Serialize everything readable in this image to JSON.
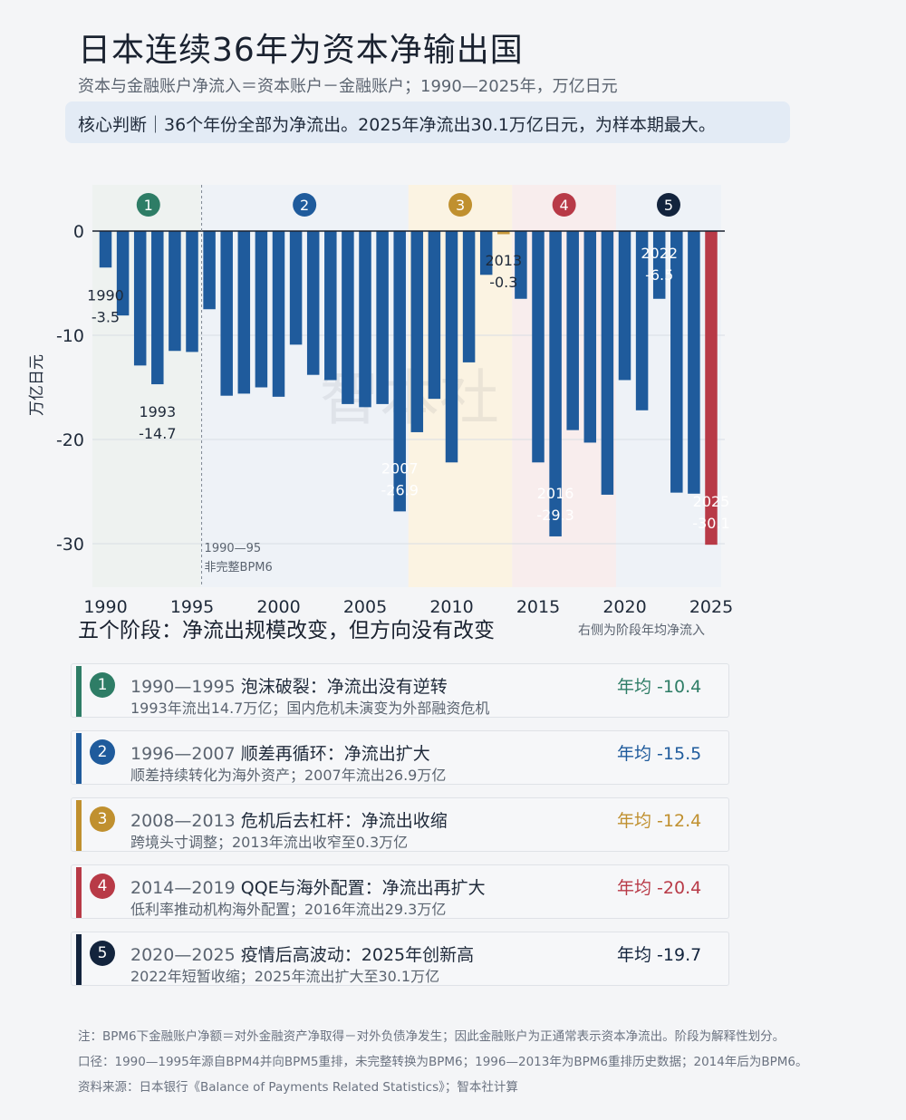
{
  "header": {
    "title": "日本连续36年为资本净输出国",
    "subtitle": "资本与金融账户净流入＝资本账户－金融账户；1990—2025年，万亿日元",
    "callout": "核心判断｜36个年份全部为净流出。2025年净流出30.1万亿日元，为样本期最大。"
  },
  "chart_data": {
    "type": "bar",
    "ylabel": "万亿日元",
    "ylim": [
      -34,
      2
    ],
    "yticks": [
      0,
      -10,
      -20,
      -30
    ],
    "xticks": [
      1990,
      1995,
      2000,
      2005,
      2010,
      2015,
      2020,
      2025
    ],
    "watermark": "智本社",
    "x": [
      1990,
      1991,
      1992,
      1993,
      1994,
      1995,
      1996,
      1997,
      1998,
      1999,
      2000,
      2001,
      2002,
      2003,
      2004,
      2005,
      2006,
      2007,
      2008,
      2009,
      2010,
      2011,
      2012,
      2013,
      2014,
      2015,
      2016,
      2017,
      2018,
      2019,
      2020,
      2021,
      2022,
      2023,
      2024,
      2025
    ],
    "values": [
      -3.5,
      -8.1,
      -12.9,
      -14.7,
      -11.5,
      -11.6,
      -7.5,
      -15.8,
      -15.6,
      -15.0,
      -15.9,
      -10.9,
      -13.8,
      -14.3,
      -16.6,
      -16.9,
      -16.6,
      -26.9,
      -19.3,
      -16.1,
      -22.2,
      -12.6,
      -4.2,
      -0.3,
      -6.5,
      -22.2,
      -29.3,
      -19.1,
      -20.3,
      -25.3,
      -14.3,
      -17.2,
      -6.5,
      -25.1,
      -25.2,
      -30.1
    ],
    "bar_color": "#1f5b9c",
    "highlight": {
      "year": 2025,
      "color": "#b83a47"
    },
    "small_value_color": "#c99a3c",
    "annotations": [
      {
        "year": 1990,
        "label": "1990",
        "value": "-3.5"
      },
      {
        "year": 1993,
        "label": "1993",
        "value": "-14.7"
      },
      {
        "year": 2007,
        "label": "2007",
        "value": "-26.9"
      },
      {
        "year": 2013,
        "label": "2013",
        "value": "-0.3"
      },
      {
        "year": 2016,
        "label": "2016",
        "value": "-29.3"
      },
      {
        "year": 2022,
        "label": "2022",
        "value": "-6.5"
      },
      {
        "year": 2025,
        "label": "2025",
        "value": "-30.1"
      }
    ],
    "divider": {
      "year": 1995.5,
      "lines": [
        "1990—95",
        "非完整BPM6"
      ]
    },
    "phases": [
      {
        "num": "1",
        "from": 1990,
        "to": 1995,
        "color": "#2e7d66",
        "bg": "#eef2f0"
      },
      {
        "num": "2",
        "from": 1996,
        "to": 2007,
        "color": "#1f5b9c",
        "bg": "#eef2f7"
      },
      {
        "num": "3",
        "from": 2008,
        "to": 2013,
        "color": "#c0902f",
        "bg": "#fbf3e2"
      },
      {
        "num": "4",
        "from": 2014,
        "to": 2019,
        "color": "#b83a47",
        "bg": "#f8eded"
      },
      {
        "num": "5",
        "from": 2020,
        "to": 2025,
        "color": "#13243d",
        "bg": "#eef2f7"
      }
    ]
  },
  "stages": {
    "heading": "五个阶段：净流出规模改变，但方向没有改变",
    "note": "右侧为阶段年均净流入",
    "items": [
      {
        "num": "1",
        "years": "1990—1995",
        "title": "泡沫破裂：净流出没有逆转",
        "desc": "1993年流出14.7万亿；国内危机未演变为外部融资危机",
        "avg": "年均 -10.4",
        "color": "#2e7d66"
      },
      {
        "num": "2",
        "years": "1996—2007",
        "title": "顺差再循环：净流出扩大",
        "desc": "顺差持续转化为海外资产；2007年流出26.9万亿",
        "avg": "年均 -15.5",
        "color": "#1f5b9c"
      },
      {
        "num": "3",
        "years": "2008—2013",
        "title": "危机后去杠杆：净流出收缩",
        "desc": "跨境头寸调整；2013年流出收窄至0.3万亿",
        "avg": "年均 -12.4",
        "color": "#c0902f"
      },
      {
        "num": "4",
        "years": "2014—2019",
        "title": "QQE与海外配置：净流出再扩大",
        "desc": "低利率推动机构海外配置；2016年流出29.3万亿",
        "avg": "年均 -20.4",
        "color": "#b83a47"
      },
      {
        "num": "5",
        "years": "2020—2025",
        "title": "疫情后高波动：2025年创新高",
        "desc": "2022年短暂收缩；2025年流出扩大至30.1万亿",
        "avg": "年均 -19.7",
        "color": "#13243d"
      }
    ]
  },
  "notes": [
    "注：BPM6下金融账户净额＝对外金融资产净取得－对外负债净发生；因此金融账户为正通常表示资本净流出。阶段为解释性划分。",
    "口径：1990—1995年源自BPM4并向BPM5重排，未完整转换为BPM6；1996—2013年为BPM6重排历史数据；2014年后为BPM6。",
    "资料来源：日本银行《Balance of Payments Related Statistics》；智本社计算"
  ]
}
